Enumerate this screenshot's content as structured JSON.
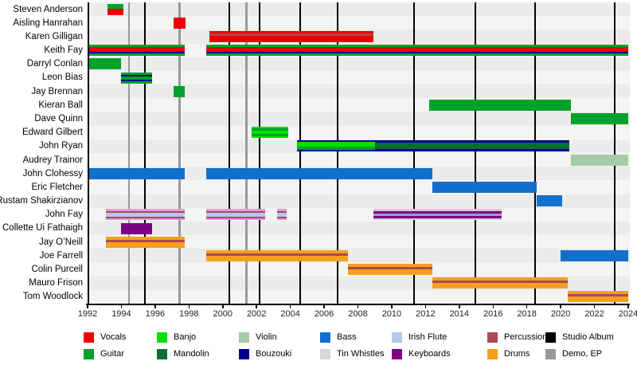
{
  "chart_data": {
    "type": "timeline",
    "description_visible_text_only": true,
    "x_axis": {
      "start": 1992,
      "end": 2024,
      "step": 2,
      "ticks": [
        1992,
        1994,
        1996,
        1998,
        2000,
        2002,
        2004,
        2006,
        2008,
        2010,
        2012,
        2014,
        2016,
        2018,
        2020,
        2022,
        2024
      ]
    },
    "colors": {
      "vocals": "#ee0000",
      "guitar": "#00a22b",
      "banjo": "#00e000",
      "mandolin": "#056f35",
      "violin": "#a6cba6",
      "bouzouki": "#000090",
      "bass": "#1170cb",
      "tin_whistles": "#d6d6d6",
      "irish_flute": "#b4c8f0",
      "keyboards": "#7d0283",
      "percussion": "#aa4a50",
      "drums": "#f6a01d",
      "studio_album": "#000000",
      "demo_ep": "#999999",
      "fay_pink": "#e09be0",
      "fay_lilac": "#d9c8da",
      "fay_slate": "#93a0d8"
    },
    "events": {
      "studio_albums": [
        1995.4,
        2000.4,
        2002.2,
        2004.6,
        2006.8,
        2011.3,
        2014.95,
        2018.5,
        2023.2
      ],
      "demos_eps": [
        1994.45,
        1997.45,
        2001.4
      ]
    },
    "members": [
      {
        "name": "Steven Anderson",
        "bars": [
          {
            "start": 1993.2,
            "end": 1994.1,
            "stripes": [
              [
                "guitar",
                6
              ],
              [
                "vocals",
                8
              ]
            ]
          }
        ]
      },
      {
        "name": "Aisling Hanrahan",
        "bars": [
          {
            "start": 1997.1,
            "end": 1997.8,
            "stripes": [
              [
                "vocals",
                14
              ]
            ]
          }
        ]
      },
      {
        "name": "Karen Gilligan",
        "bars": [
          {
            "start": 1999.2,
            "end": 2008.9,
            "stripes": [
              [
                "vocals",
                3.5
              ],
              [
                "percussion",
                3
              ],
              [
                "vocals",
                7.5
              ]
            ]
          }
        ]
      },
      {
        "name": "Keith Fay",
        "bars": [
          {
            "start": 1992.1,
            "end": 1997.75,
            "stripes": [
              [
                "guitar",
                3
              ],
              [
                "vocals",
                5.5
              ],
              [
                "bouzouki",
                2.5
              ],
              [
                "guitar",
                3
              ]
            ]
          },
          {
            "start": 1999.0,
            "end": 2024.0,
            "stripes": [
              [
                "guitar",
                3
              ],
              [
                "vocals",
                5.5
              ],
              [
                "bouzouki",
                2.5
              ],
              [
                "guitar",
                3
              ]
            ]
          }
        ]
      },
      {
        "name": "Darryl Conlan",
        "bars": [
          {
            "start": 1992.1,
            "end": 1994.0,
            "stripes": [
              [
                "guitar",
                14
              ]
            ]
          }
        ]
      },
      {
        "name": "Leon Bias",
        "bars": [
          {
            "start": 1994.0,
            "end": 1995.8,
            "stripes": [
              [
                "guitar",
                3
              ],
              [
                "bouzouki",
                2
              ],
              [
                "guitar",
                4
              ],
              [
                "bouzouki",
                2
              ],
              [
                "guitar",
                3
              ]
            ]
          }
        ]
      },
      {
        "name": "Jay Brennan",
        "bars": [
          {
            "start": 1997.1,
            "end": 1997.75,
            "stripes": [
              [
                "guitar",
                14
              ]
            ]
          }
        ]
      },
      {
        "name": "Kieran Ball",
        "bars": [
          {
            "start": 2012.2,
            "end": 2020.6,
            "stripes": [
              [
                "guitar",
                14
              ]
            ]
          }
        ]
      },
      {
        "name": "Dave Quinn",
        "bars": [
          {
            "start": 2020.6,
            "end": 2024.0,
            "stripes": [
              [
                "guitar",
                14
              ]
            ]
          }
        ]
      },
      {
        "name": "Edward Gilbert",
        "bars": [
          {
            "start": 2001.7,
            "end": 2003.9,
            "stripes": [
              [
                "banjo",
                2
              ],
              [
                "guitar",
                3
              ],
              [
                "banjo",
                4
              ],
              [
                "guitar",
                3
              ],
              [
                "banjo",
                2
              ]
            ]
          }
        ]
      },
      {
        "name": "John Ryan",
        "bars": [
          {
            "start": 2004.4,
            "end": 2009.0,
            "stripes": [
              [
                "bouzouki",
                2
              ],
              [
                "banjo",
                6
              ],
              [
                "guitar",
                4
              ],
              [
                "bouzouki",
                2
              ]
            ]
          },
          {
            "start": 2009.0,
            "end": 2020.5,
            "stripes": [
              [
                "bouzouki",
                3
              ],
              [
                "mandolin",
                8
              ],
              [
                "bouzouki",
                3
              ]
            ]
          }
        ]
      },
      {
        "name": "Audrey Trainor",
        "bars": [
          {
            "start": 2020.6,
            "end": 2024.0,
            "stripes": [
              [
                "violin",
                14
              ]
            ]
          }
        ]
      },
      {
        "name": "John Clohessy",
        "bars": [
          {
            "start": 1992.1,
            "end": 1997.75,
            "stripes": [
              [
                "bass",
                14
              ]
            ]
          },
          {
            "start": 1999.0,
            "end": 2012.4,
            "stripes": [
              [
                "bass",
                14
              ]
            ]
          }
        ]
      },
      {
        "name": "Eric Fletcher",
        "bars": [
          {
            "start": 2012.4,
            "end": 2018.6,
            "stripes": [
              [
                "bass",
                14
              ]
            ]
          }
        ]
      },
      {
        "name": "Rustam Shakirzianov",
        "bars": [
          {
            "start": 2018.6,
            "end": 2020.1,
            "stripes": [
              [
                "bass",
                14
              ]
            ]
          }
        ]
      },
      {
        "name": "John Fay",
        "bars": [
          {
            "start": 1993.1,
            "end": 1997.75,
            "stripes": [
              [
                "fay_pink",
                2.5
              ],
              [
                "percussion",
                2
              ],
              [
                "irish_flute",
                5
              ],
              [
                "percussion",
                2
              ],
              [
                "fay_pink",
                2.5
              ]
            ]
          },
          {
            "start": 1999.0,
            "end": 2002.5,
            "stripes": [
              [
                "fay_pink",
                2.5
              ],
              [
                "percussion",
                2
              ],
              [
                "irish_flute",
                5
              ],
              [
                "percussion",
                2
              ],
              [
                "fay_pink",
                2.5
              ]
            ]
          },
          {
            "start": 2003.2,
            "end": 2003.8,
            "stripes": [
              [
                "fay_pink",
                2.5
              ],
              [
                "percussion",
                2
              ],
              [
                "irish_flute",
                5
              ],
              [
                "percussion",
                2
              ],
              [
                "fay_pink",
                2.5
              ]
            ]
          },
          {
            "start": 2008.9,
            "end": 2016.5,
            "stripes": [
              [
                "fay_lilac",
                2.5
              ],
              [
                "keyboards",
                3
              ],
              [
                "fay_slate",
                3
              ],
              [
                "keyboards",
                3
              ],
              [
                "fay_lilac",
                2.5
              ]
            ]
          }
        ]
      },
      {
        "name": "Collette Ui Fathaigh",
        "bars": [
          {
            "start": 1994.0,
            "end": 1995.8,
            "stripes": [
              [
                "keyboards",
                14
              ]
            ]
          }
        ]
      },
      {
        "name": "Jay O’Neill",
        "bars": [
          {
            "start": 1993.1,
            "end": 1997.75,
            "stripes": [
              [
                "drums",
                4
              ],
              [
                "percussion",
                3
              ],
              [
                "drums",
                7
              ]
            ]
          }
        ]
      },
      {
        "name": "Joe Farrell",
        "bars": [
          {
            "start": 1999.0,
            "end": 2007.4,
            "stripes": [
              [
                "drums",
                4
              ],
              [
                "percussion",
                3
              ],
              [
                "drums",
                7
              ]
            ]
          },
          {
            "start": 2020.0,
            "end": 2024.0,
            "stripes": [
              [
                "bass",
                14
              ]
            ]
          }
        ]
      },
      {
        "name": "Colin Purcell",
        "bars": [
          {
            "start": 2007.4,
            "end": 2012.4,
            "stripes": [
              [
                "drums",
                4
              ],
              [
                "percussion",
                3
              ],
              [
                "drums",
                7
              ]
            ]
          }
        ]
      },
      {
        "name": "Mauro Frison",
        "bars": [
          {
            "start": 2012.4,
            "end": 2020.4,
            "stripes": [
              [
                "drums",
                4
              ],
              [
                "percussion",
                3
              ],
              [
                "drums",
                7
              ]
            ]
          }
        ]
      },
      {
        "name": "Tom Woodlock",
        "bars": [
          {
            "start": 2020.4,
            "end": 2024.0,
            "stripes": [
              [
                "drums",
                4
              ],
              [
                "percussion",
                3
              ],
              [
                "drums",
                7
              ]
            ]
          }
        ]
      }
    ],
    "legend": {
      "columns": [
        [
          {
            "label": "Vocals",
            "key": "vocals"
          },
          {
            "label": "Guitar",
            "key": "guitar"
          }
        ],
        [
          {
            "label": "Banjo",
            "key": "banjo"
          },
          {
            "label": "Mandolin",
            "key": "mandolin"
          }
        ],
        [
          {
            "label": "Violin",
            "key": "violin"
          },
          {
            "label": "Bouzouki",
            "key": "bouzouki"
          }
        ],
        [
          {
            "label": "Bass",
            "key": "bass"
          },
          {
            "label": "Tin Whistles",
            "key": "tin_whistles"
          }
        ],
        [
          {
            "label": "Irish Flute",
            "key": "irish_flute"
          },
          {
            "label": "Keyboards",
            "key": "keyboards"
          }
        ],
        [
          {
            "label": "Percussion",
            "key": "percussion"
          },
          {
            "label": "Drums",
            "key": "drums"
          }
        ],
        [
          {
            "label": "Studio Album",
            "key": "studio_album"
          },
          {
            "label": "Demo, EP",
            "key": "demo_ep"
          }
        ]
      ]
    }
  }
}
